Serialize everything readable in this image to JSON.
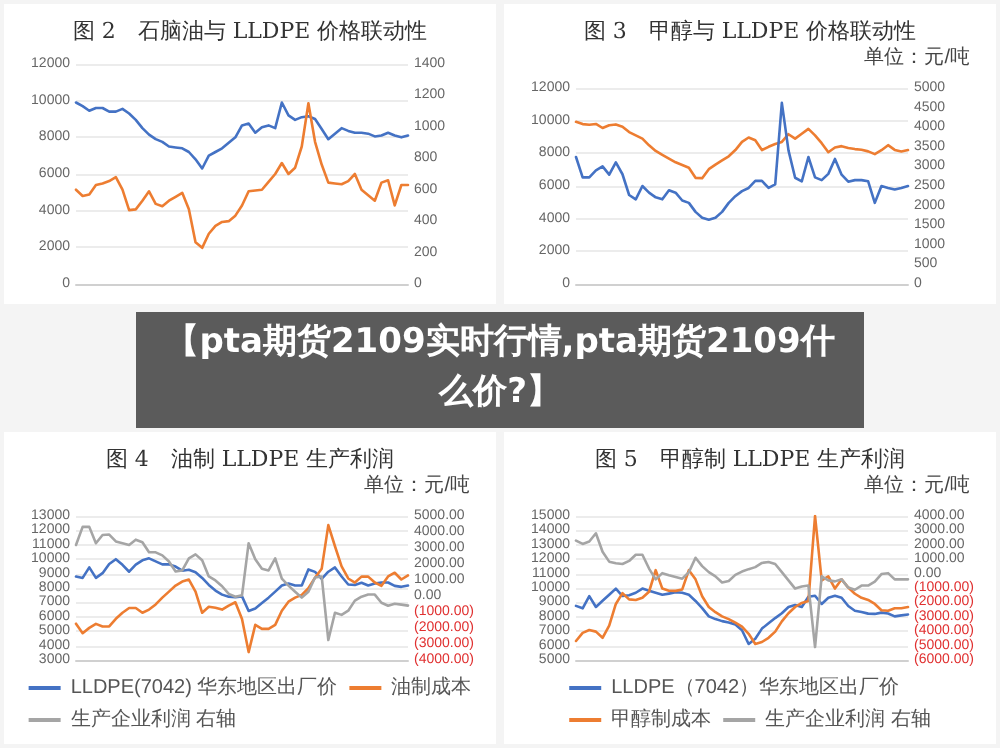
{
  "chart_data": [
    {
      "type": "line",
      "title": "图 2　石脑油与 LLDPE 价格联动性",
      "categories": [
        null,
        null,
        null,
        null,
        null,
        null,
        null,
        null,
        null,
        null,
        null,
        null,
        null,
        null,
        null,
        null,
        null,
        null,
        null,
        null,
        null,
        null,
        null,
        null,
        null,
        null,
        null,
        null,
        null,
        null,
        null,
        null,
        null,
        null,
        null,
        null,
        null,
        null,
        null,
        null,
        null,
        null,
        null,
        null,
        null,
        null,
        null,
        null,
        null,
        null,
        null
      ],
      "ylim": [
        0,
        12000
      ],
      "yticks": [
        0,
        2000,
        4000,
        6000,
        8000,
        10000,
        12000
      ],
      "y2lim": [
        0,
        1400
      ],
      "y2ticks": [
        0,
        200,
        400,
        600,
        800,
        1000,
        1200,
        1400
      ],
      "grid": "y",
      "legend": false,
      "tick_labels": "y",
      "series": [
        {
          "color": "#4472c4",
          "values": [
            9900,
            9700,
            9450,
            9600,
            9600,
            9400,
            9400,
            9550,
            9300,
            8950,
            8500,
            8150,
            7900,
            7750,
            7500,
            7450,
            7400,
            7200,
            6800,
            6300,
            7000,
            7200,
            7400,
            7700,
            8000,
            8650,
            8750,
            8250,
            8550,
            8650,
            8500,
            9900,
            9200,
            8950,
            9100,
            9150,
            9000,
            8450,
            7900,
            8200,
            8500,
            8350,
            8250,
            8250,
            8200,
            8050,
            8100,
            8250,
            8100,
            8000,
            8100
          ]
        },
        {
          "color": "#ed7d31",
          "axis": "y2",
          "values": [
            600,
            560,
            570,
            630,
            640,
            655,
            680,
            600,
            470,
            475,
            530,
            590,
            510,
            495,
            530,
            555,
            580,
            475,
            265,
            230,
            320,
            370,
            395,
            400,
            435,
            500,
            590,
            595,
            600,
            650,
            700,
            770,
            700,
            740,
            875,
            1150,
            905,
            760,
            645,
            640,
            635,
            655,
            700,
            600,
            565,
            530,
            645,
            660,
            500,
            630,
            630
          ]
        }
      ]
    },
    {
      "type": "line",
      "title": "图 3　甲醇与 LLDPE 价格联动性",
      "subtitle": "单位：元/吨",
      "categories": [
        null,
        null,
        null,
        null,
        null,
        null,
        null,
        null,
        null,
        null,
        null,
        null,
        null,
        null,
        null,
        null,
        null,
        null,
        null,
        null,
        null,
        null,
        null,
        null,
        null,
        null,
        null,
        null,
        null,
        null,
        null,
        null,
        null,
        null,
        null,
        null,
        null,
        null,
        null,
        null,
        null,
        null,
        null,
        null,
        null,
        null,
        null,
        null,
        null,
        null,
        null
      ],
      "ylim": [
        0,
        12000
      ],
      "yticks": [
        0,
        2000,
        4000,
        6000,
        8000,
        10000,
        12000
      ],
      "y2lim": [
        0,
        5000
      ],
      "y2ticks": [
        0,
        500,
        1000,
        1500,
        2000,
        2500,
        3000,
        3500,
        4000,
        4500,
        5000
      ],
      "grid": "y",
      "legend": false,
      "tick_labels": "y",
      "series": [
        {
          "color": "#ed7d31",
          "values": [
            9930,
            9790,
            9750,
            9800,
            9550,
            9720,
            9770,
            9630,
            9300,
            9100,
            8900,
            8490,
            8150,
            7900,
            7670,
            7450,
            7290,
            7120,
            6500,
            6480,
            7030,
            7310,
            7570,
            7820,
            8200,
            8700,
            8970,
            8800,
            8200,
            8400,
            8570,
            8700,
            9170,
            8900,
            9200,
            9500,
            9100,
            8620,
            8070,
            8360,
            8440,
            8330,
            8260,
            8220,
            8120,
            7950,
            8190,
            8500,
            8210,
            8110,
            8200
          ]
        },
        {
          "color": "#4472c4",
          "axis": "y2",
          "values": [
            3240,
            2720,
            2720,
            2900,
            3000,
            2790,
            3100,
            2800,
            2270,
            2160,
            2500,
            2330,
            2210,
            2160,
            2390,
            2330,
            2130,
            2070,
            1840,
            1690,
            1640,
            1690,
            1840,
            2070,
            2240,
            2370,
            2450,
            2630,
            2630,
            2450,
            2540,
            4620,
            3410,
            2710,
            2620,
            3240,
            2720,
            2650,
            2810,
            3190,
            2790,
            2610,
            2650,
            2650,
            2620,
            2070,
            2500,
            2450,
            2410,
            2450,
            2500
          ]
        }
      ]
    },
    {
      "type": "other",
      "title": "【pta期货2109实时行情,pta期货2109什么价?】"
    },
    {
      "type": "line",
      "title": "图 4　油制 LLDPE 生产利润",
      "subtitle": "单位：元/吨",
      "categories": [
        null,
        null,
        null,
        null,
        null,
        null,
        null,
        null,
        null,
        null,
        null,
        null,
        null,
        null,
        null,
        null,
        null,
        null,
        null,
        null,
        null,
        null,
        null,
        null,
        null,
        null,
        null,
        null,
        null,
        null,
        null,
        null,
        null,
        null,
        null,
        null,
        null,
        null,
        null,
        null,
        null,
        null,
        null,
        null,
        null,
        null,
        null,
        null,
        null,
        null,
        null
      ],
      "ylim": [
        3000,
        13000
      ],
      "yticks": [
        3000,
        4000,
        5000,
        6000,
        7000,
        8000,
        9000,
        10000,
        11000,
        12000,
        13000
      ],
      "y2lim": [
        -4000,
        5000
      ],
      "y2ticks": [
        {
          "value": -4000,
          "label": "(4000.00)"
        },
        {
          "value": -3000,
          "label": "(3000.00)"
        },
        {
          "value": -2000,
          "label": "(2000.00)"
        },
        {
          "value": -1000,
          "label": "(1000.00)"
        },
        {
          "value": 0,
          "label": "0.00"
        },
        {
          "value": 1000,
          "label": "1000.00"
        },
        {
          "value": 2000,
          "label": "2000.00"
        },
        {
          "value": 3000,
          "label": "3000.00"
        },
        {
          "value": 4000,
          "label": "4000.00"
        },
        {
          "value": 5000,
          "label": "5000.00"
        }
      ],
      "grid": "y",
      "legend": "bottom",
      "tick_labels": "y",
      "series": [
        {
          "name": "LLDPE(7042) 华东地区出厂价",
          "color": "#4472c4",
          "values": [
            8800,
            8700,
            9430,
            8700,
            9030,
            9670,
            10000,
            9610,
            9130,
            9620,
            9920,
            10060,
            9850,
            9640,
            9640,
            9490,
            9200,
            9270,
            9100,
            8700,
            8210,
            7820,
            7540,
            7400,
            7360,
            7420,
            6400,
            6570,
            6950,
            7330,
            7750,
            8170,
            8310,
            8170,
            8170,
            9290,
            9120,
            8630,
            9130,
            9430,
            8800,
            8240,
            8210,
            8360,
            8170,
            8310,
            8380,
            8380,
            8150,
            8080,
            8170
          ]
        },
        {
          "name": "油制成本",
          "color": "#ed7d31",
          "values": [
            5520,
            4860,
            5230,
            5510,
            5330,
            5330,
            5860,
            6280,
            6610,
            6610,
            6280,
            6500,
            6860,
            7330,
            7750,
            8170,
            8450,
            8590,
            7750,
            6280,
            6700,
            6630,
            6500,
            6780,
            7010,
            5850,
            3550,
            5440,
            5160,
            5160,
            5440,
            6420,
            7050,
            7330,
            7520,
            7980,
            8710,
            9330,
            12370,
            10900,
            9500,
            8660,
            8380,
            8790,
            8790,
            8380,
            8150,
            8800,
            9060,
            8590,
            8880
          ]
        },
        {
          "name": "生产企业利润 右轴",
          "color": "#a5a5a5",
          "axis": "y2",
          "values": [
            3190,
            4320,
            4320,
            3300,
            3810,
            3840,
            3410,
            3300,
            3190,
            3520,
            3360,
            2730,
            2730,
            2540,
            2160,
            1530,
            1600,
            2350,
            2600,
            2230,
            1220,
            970,
            610,
            130,
            -50,
            40,
            3300,
            2300,
            1700,
            1600,
            2350,
            1090,
            650,
            270,
            -100,
            270,
            1160,
            1220,
            -2750,
            -1050,
            -1180,
            -920,
            -290,
            -40,
            90,
            90,
            -420,
            -610,
            -480,
            -540,
            -600
          ]
        }
      ]
    },
    {
      "type": "line",
      "title": "图 5　甲醇制 LLDPE 生产利润",
      "subtitle": "单位：元/吨",
      "categories": [
        null,
        null,
        null,
        null,
        null,
        null,
        null,
        null,
        null,
        null,
        null,
        null,
        null,
        null,
        null,
        null,
        null,
        null,
        null,
        null,
        null,
        null,
        null,
        null,
        null,
        null,
        null,
        null,
        null,
        null,
        null,
        null,
        null,
        null,
        null,
        null,
        null,
        null,
        null,
        null,
        null,
        null,
        null,
        null,
        null,
        null,
        null,
        null,
        null,
        null,
        null
      ],
      "ylim": [
        5000,
        15000
      ],
      "yticks": [
        5000,
        6000,
        7000,
        8000,
        9000,
        10000,
        11000,
        12000,
        13000,
        14000,
        15000
      ],
      "y2lim": [
        -6000,
        4000
      ],
      "y2ticks": [
        {
          "value": -6000,
          "label": "(6000.00)"
        },
        {
          "value": -5000,
          "label": "(5000.00)"
        },
        {
          "value": -4000,
          "label": "(4000.00)"
        },
        {
          "value": -3000,
          "label": "(3000.00)"
        },
        {
          "value": -2000,
          "label": "(2000.00)"
        },
        {
          "value": -1000,
          "label": "(1000.00)"
        },
        {
          "value": 0,
          "label": "0.00"
        },
        {
          "value": 1000,
          "label": "1000.00"
        },
        {
          "value": 2000,
          "label": "2000.00"
        },
        {
          "value": 3000,
          "label": "3000.00"
        },
        {
          "value": 4000,
          "label": "4000.00"
        }
      ],
      "grid": "y",
      "legend": "bottom",
      "tick_labels": "y",
      "series": [
        {
          "name": "LLDPE（7042）华东地区出厂价",
          "color": "#4472c4",
          "values": [
            8760,
            8590,
            9440,
            8680,
            9110,
            9530,
            9960,
            9440,
            9500,
            9670,
            9960,
            9810,
            9670,
            9530,
            9610,
            9700,
            9670,
            9530,
            9100,
            8600,
            8030,
            7840,
            7700,
            7610,
            7460,
            7070,
            6110,
            6470,
            7180,
            7550,
            7910,
            8250,
            8680,
            8820,
            8680,
            9390,
            9460,
            8890,
            9320,
            9460,
            9320,
            8750,
            8420,
            8330,
            8220,
            8200,
            8290,
            8230,
            8030,
            8100,
            8160
          ]
        },
        {
          "name": "甲醇制成本",
          "color": "#ed7d31",
          "values": [
            6320,
            6880,
            7080,
            6970,
            6540,
            7390,
            8890,
            9640,
            9210,
            9170,
            9320,
            9740,
            11240,
            9960,
            9810,
            9800,
            9900,
            11240,
            10600,
            9430,
            8680,
            8320,
            8030,
            7840,
            7600,
            7320,
            6820,
            6110,
            6250,
            6540,
            6970,
            7680,
            8250,
            8680,
            8960,
            9100,
            15000,
            10530,
            10810,
            9960,
            10600,
            10030,
            9600,
            9320,
            9170,
            8890,
            8460,
            8420,
            8590,
            8590,
            8680
          ]
        },
        {
          "name": "生产企业利润 右轴",
          "color": "#a5a5a5",
          "axis": "y2",
          "values": [
            2290,
            2060,
            2230,
            2800,
            1520,
            830,
            720,
            670,
            880,
            1310,
            1310,
            350,
            -400,
            30,
            -120,
            -240,
            -350,
            100,
            1100,
            520,
            100,
            -190,
            -620,
            -510,
            -90,
            140,
            310,
            450,
            740,
            810,
            670,
            100,
            -470,
            -1040,
            -900,
            -830,
            -5100,
            -190,
            -470,
            -540,
            -400,
            -970,
            -1120,
            -830,
            -830,
            -560,
            -30,
            30,
            -400,
            -400,
            -400
          ]
        }
      ]
    }
  ]
}
